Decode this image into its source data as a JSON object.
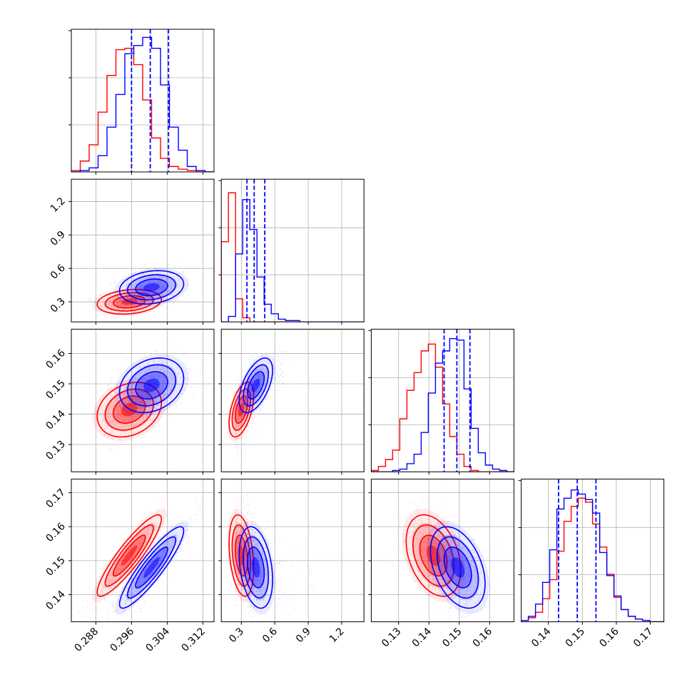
{
  "chart_data": {
    "type": "corner",
    "grid": true,
    "parameters": [
      {
        "range": [
          0.2825,
          0.3145
        ],
        "ticks": [
          0.288,
          0.296,
          0.304,
          0.312
        ],
        "tick_labels": [
          "0.288",
          "0.296",
          "0.304",
          "0.312"
        ]
      },
      {
        "range": [
          0.12,
          1.4
        ],
        "ticks": [
          0.3,
          0.6,
          0.9,
          1.2
        ],
        "tick_labels": [
          "0.3",
          "0.6",
          "0.9",
          "1.2"
        ]
      },
      {
        "range": [
          0.121,
          0.168
        ],
        "ticks": [
          0.13,
          0.14,
          0.15,
          0.16
        ],
        "tick_labels": [
          "0.13",
          "0.14",
          "0.15",
          "0.16"
        ]
      },
      {
        "range": [
          0.132,
          0.174
        ],
        "ticks": [
          0.14,
          0.15,
          0.16,
          0.17
        ],
        "tick_labels": [
          "0.14",
          "0.15",
          "0.16",
          "0.17"
        ]
      }
    ],
    "series": [
      {
        "color": "#ff0000",
        "mean": [
          0.2955,
          0.3,
          0.1415,
          0.1515
        ],
        "sd": [
          0.0036,
          0.055,
          0.0045,
          0.006
        ],
        "corr": [
          [
            1,
            0.2,
            0.25,
            0.9
          ],
          [
            0.2,
            1,
            0.5,
            -0.3
          ],
          [
            0.25,
            0.5,
            1,
            -0.35
          ],
          [
            0.9,
            -0.3,
            -0.35,
            1
          ]
        ],
        "hist": [
          [
            0.01,
            0.08,
            0.2,
            0.44,
            0.71,
            0.9,
            0.91,
            0.79,
            0.53,
            0.25,
            0.1,
            0.04,
            0.02,
            0.01,
            0,
            0
          ],
          [
            0.59,
            0.95,
            0.17,
            0.03,
            0,
            0,
            0,
            0,
            0,
            0,
            0,
            0,
            0,
            0,
            0,
            0,
            0,
            0,
            0,
            0
          ],
          [
            0.01,
            0.04,
            0.09,
            0.16,
            0.39,
            0.6,
            0.73,
            0.89,
            0.94,
            0.77,
            0.5,
            0.26,
            0.13,
            0.04,
            0.01,
            0,
            0,
            0,
            0,
            0
          ],
          [
            0.01,
            0.03,
            0.07,
            0.17,
            0.31,
            0.52,
            0.74,
            0.85,
            0.91,
            0.88,
            0.72,
            0.55,
            0.35,
            0.18,
            0.09,
            0.04,
            0.02,
            0.01,
            0,
            0
          ]
        ]
      },
      {
        "color": "#0000ff",
        "mean": [
          0.3005,
          0.43,
          0.1495,
          0.148
        ],
        "sd": [
          0.0036,
          0.075,
          0.0045,
          0.006
        ],
        "corr": [
          [
            1,
            0.2,
            0.25,
            0.9
          ],
          [
            0.2,
            1,
            0.55,
            -0.3
          ],
          [
            0.25,
            0.55,
            1,
            -0.4
          ],
          [
            0.9,
            -0.3,
            -0.4,
            1
          ]
        ],
        "hist": [
          [
            0,
            0.01,
            0.03,
            0.12,
            0.33,
            0.57,
            0.87,
            0.93,
            0.99,
            0.91,
            0.64,
            0.33,
            0.16,
            0.04,
            0.01,
            0
          ],
          [
            0,
            0.04,
            0.5,
            0.9,
            0.68,
            0.33,
            0.13,
            0.06,
            0.02,
            0.01,
            0.01,
            0,
            0,
            0,
            0,
            0,
            0,
            0,
            0,
            0
          ],
          [
            0,
            0,
            0,
            0.01,
            0.02,
            0.06,
            0.13,
            0.29,
            0.58,
            0.8,
            0.89,
            0.98,
            0.97,
            0.61,
            0.32,
            0.14,
            0.05,
            0.02,
            0.01,
            0
          ],
          [
            0.01,
            0.04,
            0.13,
            0.29,
            0.53,
            0.83,
            0.91,
            0.97,
            0.94,
            0.9,
            0.8,
            0.51,
            0.34,
            0.19,
            0.09,
            0.04,
            0.02,
            0.01,
            0,
            0
          ]
        ]
      }
    ],
    "quantile_lines": [
      [
        0.296,
        0.3002,
        0.3043
      ],
      [
        0.35,
        0.415,
        0.51
      ],
      [
        0.145,
        0.1492,
        0.1535
      ],
      [
        0.143,
        0.1485,
        0.154
      ]
    ]
  }
}
